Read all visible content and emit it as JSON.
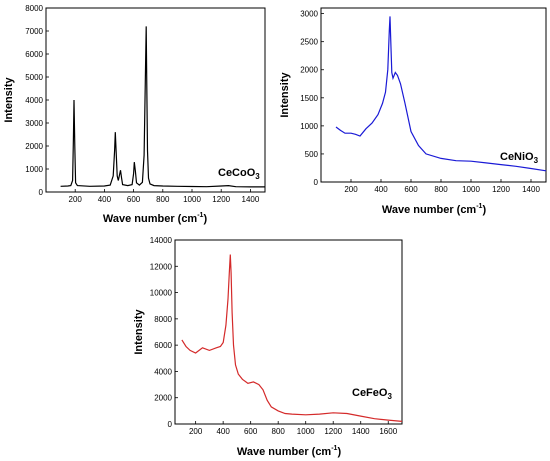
{
  "chart_data": [
    {
      "type": "line",
      "color": "#000000",
      "xlabel": "Wave number (cm",
      "xlabel_sup": "-1",
      "xlabel_end": ")",
      "ylabel": "Intensity",
      "xlim": [
        0,
        1500
      ],
      "ylim": [
        0,
        8000
      ],
      "xticks": [
        200,
        400,
        600,
        800,
        1000,
        1200,
        1400
      ],
      "yticks": [
        0,
        1000,
        2000,
        3000,
        4000,
        5000,
        6000,
        7000,
        8000
      ],
      "annotation": {
        "base": "CeCoO",
        "sub": "3"
      },
      "series": [
        {
          "x": [
            100,
            150,
            170,
            182,
            188,
            192,
            197,
            203,
            215,
            300,
            400,
            440,
            460,
            470,
            475,
            480,
            488,
            495,
            502,
            510,
            518,
            525,
            560,
            590,
            600,
            605,
            612,
            620,
            640,
            660,
            672,
            680,
            686,
            690,
            695,
            702,
            712,
            740,
            800,
            900,
            1000,
            1100,
            1200,
            1250,
            1300,
            1400,
            1500
          ],
          "y": [
            250,
            260,
            280,
            500,
            2300,
            4000,
            2000,
            400,
            280,
            250,
            260,
            300,
            700,
            1800,
            2600,
            1800,
            700,
            500,
            700,
            950,
            600,
            320,
            280,
            320,
            800,
            1300,
            900,
            400,
            300,
            420,
            1600,
            4800,
            7200,
            5000,
            1800,
            600,
            350,
            280,
            260,
            250,
            240,
            230,
            260,
            280,
            230,
            220,
            220
          ]
        }
      ]
    },
    {
      "type": "line",
      "color": "#1a1ad6",
      "xlabel": "Wave number (cm",
      "xlabel_sup": "-1",
      "xlabel_end": ")",
      "ylabel": "Intensity",
      "xlim": [
        0,
        1500
      ],
      "ylim": [
        0,
        3100
      ],
      "xticks": [
        200,
        400,
        600,
        800,
        1000,
        1200,
        1400
      ],
      "yticks": [
        0,
        500,
        1000,
        1500,
        2000,
        2500,
        3000
      ],
      "annotation": {
        "base": "CeNiO",
        "sub": "3"
      },
      "series": [
        {
          "x": [
            100,
            130,
            160,
            200,
            230,
            260,
            300,
            340,
            380,
            410,
            430,
            445,
            455,
            460,
            465,
            472,
            480,
            495,
            510,
            530,
            560,
            600,
            650,
            700,
            800,
            900,
            1000,
            1100,
            1200,
            1300,
            1400,
            1500
          ],
          "y": [
            980,
            920,
            870,
            870,
            850,
            820,
            950,
            1050,
            1200,
            1400,
            1600,
            2000,
            2700,
            2950,
            2500,
            1950,
            1850,
            1950,
            1900,
            1750,
            1400,
            900,
            650,
            500,
            420,
            380,
            370,
            340,
            310,
            280,
            240,
            200
          ]
        }
      ]
    },
    {
      "type": "line",
      "color": "#d42a2a",
      "xlabel": "Wave number (cm",
      "xlabel_sup": "-1",
      "xlabel_end": ")",
      "ylabel": "Intensity",
      "xlim": [
        50,
        1700
      ],
      "ylim": [
        0,
        14000
      ],
      "xticks": [
        200,
        400,
        600,
        800,
        1000,
        1200,
        1400,
        1600
      ],
      "yticks": [
        0,
        2000,
        4000,
        6000,
        8000,
        10000,
        12000,
        14000
      ],
      "annotation": {
        "base": "CeFeO",
        "sub": "3"
      },
      "series": [
        {
          "x": [
            100,
            130,
            160,
            200,
            250,
            300,
            350,
            380,
            400,
            420,
            435,
            445,
            452,
            458,
            465,
            475,
            490,
            510,
            540,
            580,
            620,
            660,
            690,
            720,
            750,
            800,
            850,
            900,
            1000,
            1100,
            1200,
            1300,
            1400,
            1500,
            1600,
            1700
          ],
          "y": [
            6400,
            5900,
            5600,
            5400,
            5800,
            5600,
            5800,
            5900,
            6200,
            7500,
            9500,
            11500,
            12900,
            11500,
            8500,
            6000,
            4500,
            3800,
            3400,
            3100,
            3200,
            3000,
            2600,
            1800,
            1300,
            1000,
            800,
            750,
            700,
            750,
            850,
            800,
            600,
            400,
            300,
            200
          ]
        }
      ]
    }
  ]
}
